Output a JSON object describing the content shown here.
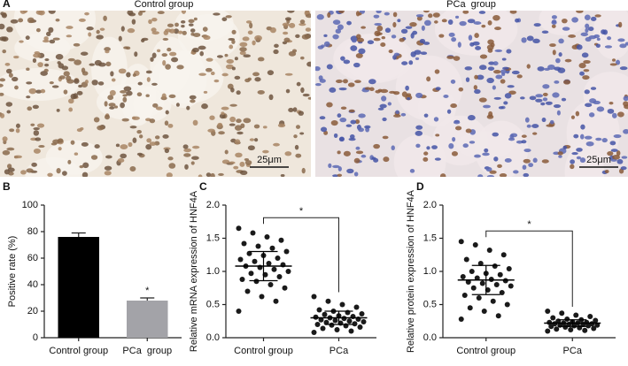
{
  "images": {
    "panel": "A",
    "labels": [
      "Control group",
      "PCa  group"
    ],
    "scale_bar": "25μm"
  },
  "chart_data": [
    {
      "type": "bar",
      "panel": "B",
      "ylabel": "Positive rate (%)",
      "categories": [
        "Control group",
        "PCa  group"
      ],
      "values": [
        76,
        28
      ],
      "errors": [
        3,
        2
      ],
      "colors": [
        "#000000",
        "#a3a3a8"
      ],
      "ylim": [
        0,
        100
      ],
      "yticks": [
        0,
        20,
        40,
        60,
        80,
        100
      ],
      "annotations": [
        {
          "text": "*",
          "x": "PCa  group"
        }
      ]
    },
    {
      "type": "dot",
      "panel": "C",
      "ylabel": "Relative mRNA expression of HNF4A",
      "categories": [
        "Control group",
        "PCa"
      ],
      "points": [
        [
          1.65,
          1.58,
          1.52,
          1.47,
          1.42,
          1.38,
          1.35,
          1.3,
          1.27,
          1.24,
          1.2,
          1.18,
          1.15,
          1.12,
          1.1,
          1.08,
          1.06,
          1.03,
          1.0,
          0.97,
          0.95,
          0.92,
          0.88,
          0.85,
          0.8,
          0.75,
          0.7,
          0.62,
          0.55,
          0.4
        ],
        [
          0.62,
          0.55,
          0.5,
          0.46,
          0.42,
          0.4,
          0.38,
          0.36,
          0.35,
          0.33,
          0.32,
          0.31,
          0.3,
          0.29,
          0.28,
          0.27,
          0.26,
          0.25,
          0.24,
          0.23,
          0.22,
          0.21,
          0.2,
          0.19,
          0.18,
          0.16,
          0.14,
          0.12,
          0.1,
          0.08
        ]
      ],
      "means": [
        1.08,
        0.3
      ],
      "sd": [
        0.22,
        0.1
      ],
      "ylim": [
        0,
        2
      ],
      "yticks": [
        {
          "value": 0,
          "label": "0.0"
        },
        0.5,
        {
          "value": 1,
          "label": "1.0"
        },
        1.5,
        {
          "value": 2,
          "label": "2.0"
        }
      ],
      "significance": "*"
    },
    {
      "type": "dot",
      "panel": "D",
      "ylabel": "Relative protein expression of HNF4A",
      "categories": [
        "Control group",
        "PCa"
      ],
      "points": [
        [
          1.45,
          1.4,
          1.32,
          1.25,
          1.18,
          1.12,
          1.08,
          1.04,
          1.0,
          0.97,
          0.95,
          0.92,
          0.9,
          0.88,
          0.86,
          0.84,
          0.82,
          0.8,
          0.78,
          0.75,
          0.72,
          0.68,
          0.64,
          0.6,
          0.55,
          0.5,
          0.45,
          0.4,
          0.33,
          0.28
        ],
        [
          0.4,
          0.37,
          0.34,
          0.32,
          0.3,
          0.28,
          0.27,
          0.26,
          0.25,
          0.24,
          0.23,
          0.23,
          0.22,
          0.22,
          0.21,
          0.21,
          0.2,
          0.2,
          0.19,
          0.19,
          0.18,
          0.18,
          0.17,
          0.16,
          0.15,
          0.14,
          0.13,
          0.12,
          0.11,
          0.1
        ]
      ],
      "means": [
        0.87,
        0.22
      ],
      "sd": [
        0.22,
        0.05
      ],
      "ylim": [
        0,
        2
      ],
      "yticks": [
        {
          "value": 0,
          "label": "0.0"
        },
        0.5,
        {
          "value": 1,
          "label": "1.0"
        },
        1.5,
        {
          "value": 2,
          "label": "2.0"
        }
      ],
      "significance": "*"
    }
  ]
}
